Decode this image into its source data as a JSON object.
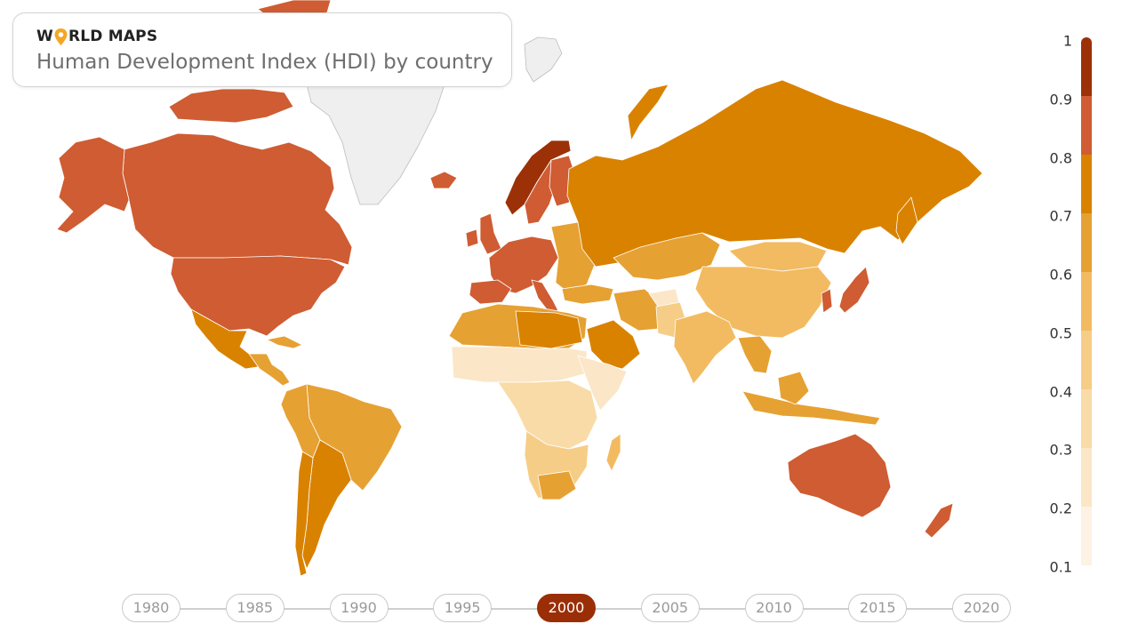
{
  "header": {
    "brand_prefix": "W",
    "brand_suffix": "RLD MAPS",
    "title": "Human Development Index (HDI) by country"
  },
  "legend": {
    "labels": [
      "1",
      "0.9",
      "0.8",
      "0.7",
      "0.6",
      "0.5",
      "0.4",
      "0.3",
      "0.2",
      "0.1"
    ],
    "colors": [
      "#9c3107",
      "#cf5c32",
      "#d98200",
      "#e6a133",
      "#f2bb61",
      "#f6cd86",
      "#f9dba8",
      "#fbe6c7",
      "#fdf2e3"
    ]
  },
  "timeline": {
    "years": [
      "1980",
      "1985",
      "1990",
      "1995",
      "2000",
      "2005",
      "2010",
      "2015",
      "2020"
    ],
    "selected": "2000"
  },
  "colors": {
    "no_data": "#efefef",
    "accent": "#9a2e06",
    "pin": "#f5a623"
  }
}
